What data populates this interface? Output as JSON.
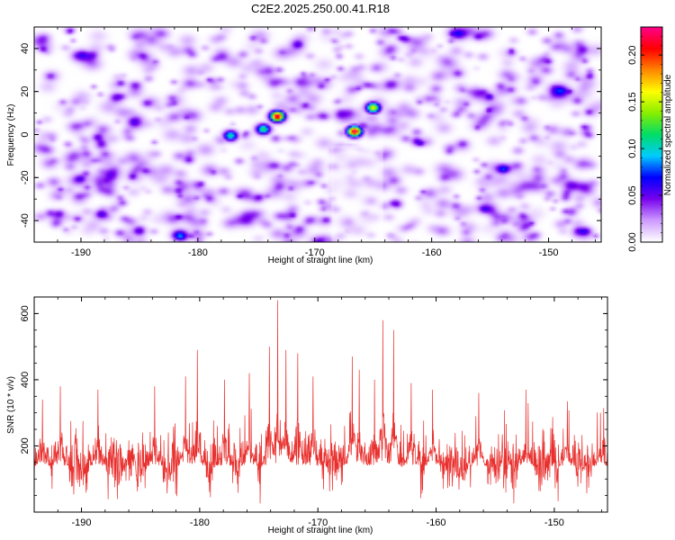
{
  "title": "C2E2.2025.250.00.41.R18",
  "colors": {
    "snr_line": "#e8302e",
    "frame": "#000000",
    "background": "#ffffff"
  },
  "chart_data": [
    {
      "type": "heatmap",
      "name": "spectrogram",
      "xlabel": "Height of straight line (km)",
      "ylabel": "Frequency (Hz)",
      "xlim": [
        -194,
        -145.5
      ],
      "ylim": [
        -50,
        50
      ],
      "x_ticks": [
        -190,
        -180,
        -170,
        -160,
        -150
      ],
      "x_tick_labels": [
        "-190",
        "-180",
        "-170",
        "-160",
        "-150"
      ],
      "y_ticks": [
        -40,
        -20,
        0,
        20,
        40
      ],
      "y_tick_labels": [
        "-40",
        "-20",
        "0",
        "20",
        "40"
      ],
      "colorbar": {
        "label": "Normalized spectral amplitude",
        "range": [
          0.0,
          0.23
        ],
        "ticks": [
          0.0,
          0.05,
          0.1,
          0.15,
          0.2
        ],
        "tick_labels": [
          "0.00",
          "0.05",
          "0.10",
          "0.15",
          "0.20"
        ],
        "colors": [
          "#ffffff",
          "#cc99ff",
          "#7700ee",
          "#0000ff",
          "#00ccff",
          "#00dd66",
          "#88ee00",
          "#ffff00",
          "#ff8800",
          "#ff0000",
          "#ff0088"
        ]
      },
      "peaks": [
        {
          "x": -173.3,
          "y": 9,
          "value": 0.23
        },
        {
          "x": -166.7,
          "y": 2,
          "value": 0.23
        },
        {
          "x": -165.1,
          "y": 13,
          "value": 0.16
        },
        {
          "x": -174.5,
          "y": 3,
          "value": 0.12
        },
        {
          "x": -177.3,
          "y": 0,
          "value": 0.11
        }
      ]
    },
    {
      "type": "line",
      "name": "snr",
      "xlabel": "Height of straight line (km)",
      "ylabel": "SNR (10 * v/v)",
      "xlim": [
        -194,
        -145.5
      ],
      "ylim": [
        0,
        650
      ],
      "x_ticks": [
        -190,
        -180,
        -170,
        -160,
        -150
      ],
      "x_tick_labels": [
        "-190",
        "-180",
        "-170",
        "-160",
        "-150"
      ],
      "y_ticks": [
        200,
        400,
        600
      ],
      "y_tick_labels": [
        "200",
        "400",
        "600"
      ],
      "baseline_mean": 140,
      "noise_spread": 70,
      "spikes": [
        {
          "x": -193.3,
          "y": 340
        },
        {
          "x": -191.8,
          "y": 380
        },
        {
          "x": -188.6,
          "y": 370
        },
        {
          "x": -183.8,
          "y": 380
        },
        {
          "x": -181.2,
          "y": 410
        },
        {
          "x": -180.2,
          "y": 490
        },
        {
          "x": -177.9,
          "y": 400
        },
        {
          "x": -175.8,
          "y": 420
        },
        {
          "x": -174.1,
          "y": 500
        },
        {
          "x": -173.4,
          "y": 640
        },
        {
          "x": -172.7,
          "y": 490
        },
        {
          "x": -171.7,
          "y": 480
        },
        {
          "x": -170.4,
          "y": 410
        },
        {
          "x": -167.1,
          "y": 470
        },
        {
          "x": -166.5,
          "y": 430
        },
        {
          "x": -165.2,
          "y": 400
        },
        {
          "x": -164.5,
          "y": 580
        },
        {
          "x": -163.6,
          "y": 550
        },
        {
          "x": -162.1,
          "y": 390
        },
        {
          "x": -160.3,
          "y": 370
        },
        {
          "x": -156.4,
          "y": 360
        },
        {
          "x": -152.4,
          "y": 370
        },
        {
          "x": -148.9,
          "y": 335
        },
        {
          "x": -146.1,
          "y": 300
        }
      ]
    }
  ]
}
